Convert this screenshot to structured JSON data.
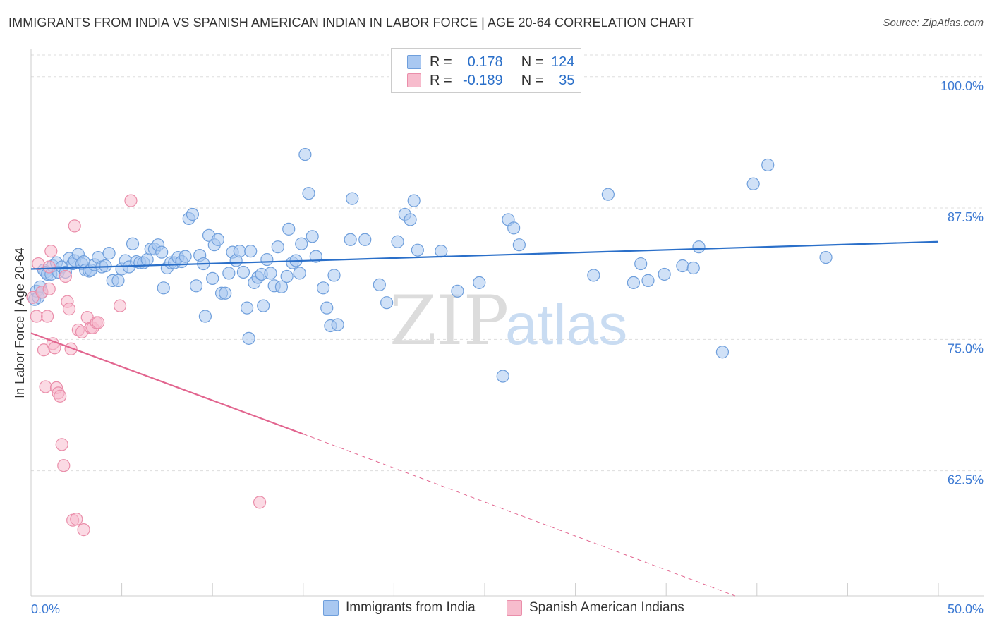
{
  "title": "IMMIGRANTS FROM INDIA VS SPANISH AMERICAN INDIAN IN LABOR FORCE | AGE 20-64 CORRELATION CHART",
  "source": "Source: ZipAtlas.com",
  "watermark": {
    "zip": "ZIP",
    "atlas": "atlas"
  },
  "stats": [
    {
      "r_label": "R =",
      "r_value": "0.178",
      "n_label": "N =",
      "n_value": "124",
      "color": "#a9c8f1",
      "border": "#6f9fdc"
    },
    {
      "r_label": "R =",
      "r_value": "-0.189",
      "n_label": "N =",
      "n_value": "35",
      "color": "#f7bccd",
      "border": "#ea8eaa"
    }
  ],
  "legend": [
    {
      "label": "Immigrants from India",
      "color": "#a9c8f1",
      "border": "#6f9fdc"
    },
    {
      "label": "Spanish American Indians",
      "color": "#f7bccd",
      "border": "#ea8eaa"
    }
  ],
  "chart_data": {
    "type": "scatter",
    "title": "IMMIGRANTS FROM INDIA VS SPANISH AMERICAN INDIAN IN LABOR FORCE | AGE 20-64 CORRELATION CHART",
    "xlabel": "",
    "ylabel": "In Labor Force | Age 20-64",
    "xlim": [
      0,
      50
    ],
    "ylim": [
      50.6,
      102.6
    ],
    "x_tick_labels": [
      {
        "value": 0,
        "label": "0.0%"
      },
      {
        "value": 50,
        "label": "50.0%"
      }
    ],
    "y_tick_labels": [
      {
        "value": 100,
        "label": "100.0%"
      },
      {
        "value": 87.5,
        "label": "87.5%"
      },
      {
        "value": 75,
        "label": "75.0%"
      },
      {
        "value": 62.5,
        "label": "62.5%"
      }
    ],
    "grid": "horizontal dashed",
    "series": [
      {
        "name": "Immigrants from India",
        "color": "#a9c8f1",
        "stroke": "#6f9fdc",
        "trend": {
          "x": [
            0,
            50
          ],
          "y": [
            81.7,
            84.3
          ],
          "color": "#2a6fc9"
        },
        "points": [
          [
            0.2,
            78.8
          ],
          [
            0.3,
            79.6
          ],
          [
            0.4,
            79.0
          ],
          [
            0.5,
            80.0
          ],
          [
            0.6,
            79.5
          ],
          [
            0.7,
            81.6
          ],
          [
            0.8,
            81.4
          ],
          [
            0.9,
            81.2
          ],
          [
            1.1,
            81.2
          ],
          [
            1.2,
            82.0
          ],
          [
            1.4,
            82.3
          ],
          [
            1.5,
            81.4
          ],
          [
            1.7,
            81.9
          ],
          [
            1.9,
            81.4
          ],
          [
            2.1,
            82.7
          ],
          [
            2.3,
            82.2
          ],
          [
            2.4,
            82.5
          ],
          [
            2.6,
            83.1
          ],
          [
            2.8,
            82.2
          ],
          [
            2.9,
            82.4
          ],
          [
            3.0,
            81.6
          ],
          [
            3.2,
            81.5
          ],
          [
            3.3,
            81.6
          ],
          [
            3.5,
            82.1
          ],
          [
            3.7,
            82.8
          ],
          [
            3.9,
            81.9
          ],
          [
            4.1,
            82.0
          ],
          [
            4.3,
            83.2
          ],
          [
            4.5,
            80.6
          ],
          [
            4.8,
            80.6
          ],
          [
            5.0,
            81.7
          ],
          [
            5.2,
            82.5
          ],
          [
            5.4,
            81.9
          ],
          [
            5.6,
            84.1
          ],
          [
            5.8,
            82.4
          ],
          [
            6.0,
            82.3
          ],
          [
            6.2,
            82.3
          ],
          [
            6.4,
            82.6
          ],
          [
            6.6,
            83.6
          ],
          [
            6.8,
            83.6
          ],
          [
            7.0,
            84.0
          ],
          [
            7.2,
            83.3
          ],
          [
            7.3,
            79.9
          ],
          [
            7.5,
            81.8
          ],
          [
            7.7,
            82.3
          ],
          [
            7.9,
            82.3
          ],
          [
            8.1,
            82.8
          ],
          [
            8.3,
            82.4
          ],
          [
            8.5,
            82.9
          ],
          [
            8.7,
            86.5
          ],
          [
            8.9,
            86.9
          ],
          [
            9.1,
            80.1
          ],
          [
            9.3,
            83.0
          ],
          [
            9.5,
            82.2
          ],
          [
            9.6,
            77.2
          ],
          [
            9.8,
            84.9
          ],
          [
            10.0,
            80.8
          ],
          [
            10.1,
            84.0
          ],
          [
            10.3,
            84.5
          ],
          [
            10.5,
            79.4
          ],
          [
            10.7,
            79.4
          ],
          [
            10.9,
            81.3
          ],
          [
            11.1,
            83.3
          ],
          [
            11.3,
            82.5
          ],
          [
            11.5,
            83.4
          ],
          [
            11.7,
            81.4
          ],
          [
            11.9,
            78.0
          ],
          [
            12.0,
            75.1
          ],
          [
            12.1,
            83.4
          ],
          [
            12.3,
            80.4
          ],
          [
            12.5,
            80.9
          ],
          [
            12.7,
            81.2
          ],
          [
            12.8,
            78.2
          ],
          [
            13.0,
            82.6
          ],
          [
            13.2,
            81.3
          ],
          [
            13.4,
            80.1
          ],
          [
            13.6,
            83.8
          ],
          [
            13.8,
            80.0
          ],
          [
            14.1,
            81.0
          ],
          [
            14.2,
            85.5
          ],
          [
            14.4,
            82.3
          ],
          [
            14.6,
            82.5
          ],
          [
            14.8,
            81.3
          ],
          [
            14.9,
            84.1
          ],
          [
            15.1,
            92.6
          ],
          [
            15.3,
            88.9
          ],
          [
            15.5,
            84.8
          ],
          [
            15.7,
            82.9
          ],
          [
            16.1,
            79.9
          ],
          [
            16.3,
            78.0
          ],
          [
            16.5,
            76.3
          ],
          [
            16.7,
            81.1
          ],
          [
            16.9,
            76.4
          ],
          [
            17.6,
            84.5
          ],
          [
            17.7,
            88.4
          ],
          [
            18.4,
            84.5
          ],
          [
            19.2,
            80.2
          ],
          [
            19.6,
            78.5
          ],
          [
            20.2,
            84.3
          ],
          [
            20.6,
            86.9
          ],
          [
            20.9,
            86.4
          ],
          [
            21.1,
            88.2
          ],
          [
            21.3,
            83.5
          ],
          [
            22.6,
            83.4
          ],
          [
            23.5,
            79.6
          ],
          [
            24.7,
            80.4
          ],
          [
            26.0,
            71.5
          ],
          [
            26.3,
            86.4
          ],
          [
            26.6,
            85.6
          ],
          [
            26.9,
            84.0
          ],
          [
            31.0,
            81.1
          ],
          [
            31.8,
            88.8
          ],
          [
            33.2,
            80.4
          ],
          [
            33.6,
            82.2
          ],
          [
            34.0,
            80.6
          ],
          [
            34.9,
            81.2
          ],
          [
            35.9,
            82.0
          ],
          [
            36.5,
            81.8
          ],
          [
            36.8,
            83.8
          ],
          [
            38.1,
            73.8
          ],
          [
            39.8,
            89.8
          ],
          [
            40.6,
            91.6
          ],
          [
            43.8,
            82.8
          ]
        ]
      },
      {
        "name": "Spanish American Indians",
        "color": "#f7bccd",
        "stroke": "#ea8eaa",
        "trend": {
          "x": [
            0,
            15
          ],
          "y": [
            75.6,
            66.0
          ],
          "color": "#e2658f"
        },
        "trend_dashed": {
          "x": [
            15,
            38.8
          ],
          "y": [
            66.0,
            50.6
          ],
          "color": "#e2658f"
        },
        "points": [
          [
            0.1,
            79.0
          ],
          [
            0.3,
            77.2
          ],
          [
            0.4,
            82.2
          ],
          [
            0.6,
            79.5
          ],
          [
            0.7,
            74.0
          ],
          [
            0.8,
            70.5
          ],
          [
            0.9,
            77.2
          ],
          [
            1.0,
            81.9
          ],
          [
            1.1,
            83.4
          ],
          [
            1.2,
            74.6
          ],
          [
            1.3,
            74.2
          ],
          [
            1.4,
            70.4
          ],
          [
            1.5,
            69.9
          ],
          [
            1.6,
            69.6
          ],
          [
            1.7,
            65.0
          ],
          [
            1.8,
            63.0
          ],
          [
            1.9,
            81.0
          ],
          [
            2.0,
            78.6
          ],
          [
            2.1,
            77.9
          ],
          [
            2.2,
            74.1
          ],
          [
            2.3,
            57.8
          ],
          [
            2.4,
            85.8
          ],
          [
            2.5,
            57.9
          ],
          [
            2.6,
            75.9
          ],
          [
            2.8,
            75.7
          ],
          [
            2.9,
            56.9
          ],
          [
            3.1,
            77.1
          ],
          [
            3.3,
            76.1
          ],
          [
            3.4,
            76.1
          ],
          [
            3.6,
            76.6
          ],
          [
            3.7,
            76.6
          ],
          [
            4.9,
            78.2
          ],
          [
            5.5,
            88.2
          ],
          [
            12.6,
            59.5
          ],
          [
            1.0,
            79.8
          ]
        ]
      }
    ]
  }
}
